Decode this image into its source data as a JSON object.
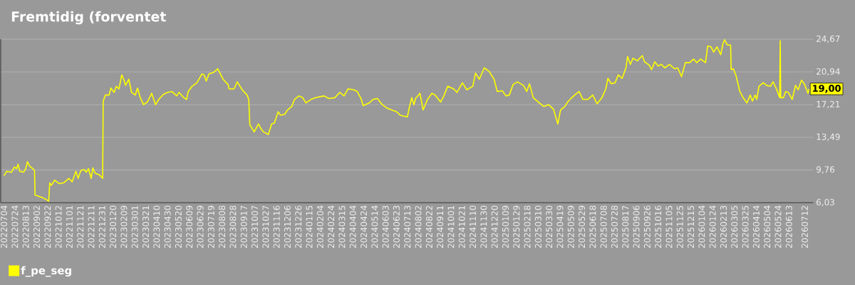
{
  "chart_data": {
    "type": "line",
    "title": "Fremtidig (forventet",
    "x": [
      "2022-07-04",
      "2022-07-09",
      "2022-07-18",
      "2022-07-23",
      "2022-07-27",
      "2022-07-30",
      "2022-08-02",
      "2022-08-09",
      "2022-08-13",
      "2022-08-16",
      "2022-08-20",
      "2022-08-26",
      "2022-08-29",
      "2022-08-30",
      "2022-09-04",
      "2022-09-13",
      "2022-09-19",
      "2022-09-24",
      "2022-09-26",
      "2022-09-29",
      "2022-10-05",
      "2022-10-13",
      "2022-10-22",
      "2022-10-31",
      "2022-11-06",
      "2022-11-13",
      "2022-11-17",
      "2022-11-22",
      "2022-11-28",
      "2022-12-02",
      "2022-12-06",
      "2022-12-11",
      "2022-12-14",
      "2022-12-18",
      "2022-12-26",
      "2023-01-01",
      "2023-01-02",
      "2023-01-06",
      "2023-01-13",
      "2023-01-16",
      "2023-01-22",
      "2023-01-26",
      "2023-01-31",
      "2023-02-05",
      "2023-02-08",
      "2023-02-12",
      "2023-02-18",
      "2023-02-23",
      "2023-03-02",
      "2023-03-06",
      "2023-03-11",
      "2023-03-17",
      "2023-03-24",
      "2023-03-28",
      "2023-04-01",
      "2023-04-08",
      "2023-04-14",
      "2023-04-23",
      "2023-04-30",
      "2023-05-08",
      "2023-05-17",
      "2023-05-21",
      "2023-05-30",
      "2023-06-04",
      "2023-06-07",
      "2023-06-14",
      "2023-06-23",
      "2023-07-02",
      "2023-07-06",
      "2023-07-10",
      "2023-07-15",
      "2023-07-24",
      "2023-07-31",
      "2023-08-05",
      "2023-08-10",
      "2023-08-19",
      "2023-08-21",
      "2023-08-30",
      "2023-09-05",
      "2023-09-09",
      "2023-09-14",
      "2023-09-23",
      "2023-09-26",
      "2023-09-28",
      "2023-10-01",
      "2023-10-06",
      "2023-10-14",
      "2023-10-18",
      "2023-10-23",
      "2023-11-01",
      "2023-11-07",
      "2023-11-12",
      "2023-11-19",
      "2023-11-23",
      "2023-12-01",
      "2023-12-06",
      "2023-12-14",
      "2023-12-19",
      "2023-12-27",
      "2024-01-03",
      "2024-01-09",
      "2024-01-18",
      "2024-01-27",
      "2024-02-11",
      "2024-02-20",
      "2024-03-02",
      "2024-03-11",
      "2024-03-19",
      "2024-03-26",
      "2024-04-06",
      "2024-04-12",
      "2024-04-19",
      "2024-04-23",
      "2024-05-04",
      "2024-05-11",
      "2024-05-19",
      "2024-05-28",
      "2024-06-06",
      "2024-06-14",
      "2024-06-23",
      "2024-06-30",
      "2024-07-13",
      "2024-07-17",
      "2024-07-21",
      "2024-07-25",
      "2024-07-28",
      "2024-08-05",
      "2024-08-11",
      "2024-08-19",
      "2024-08-27",
      "2024-09-02",
      "2024-09-12",
      "2024-09-18",
      "2024-09-25",
      "2024-10-06",
      "2024-10-12",
      "2024-10-22",
      "2024-10-30",
      "2024-11-10",
      "2024-11-15",
      "2024-11-22",
      "2024-12-01",
      "2024-12-10",
      "2024-12-19",
      "2024-12-25",
      "2025-01-03",
      "2025-01-10",
      "2025-01-16",
      "2025-01-23",
      "2025-01-31",
      "2025-02-11",
      "2025-02-17",
      "2025-02-22",
      "2025-03-01",
      "2025-03-12",
      "2025-03-20",
      "2025-03-29",
      "2025-04-07",
      "2025-04-15",
      "2025-04-20",
      "2025-04-28",
      "2025-05-03",
      "2025-05-09",
      "2025-05-16",
      "2025-05-24",
      "2025-05-31",
      "2025-06-09",
      "2025-06-18",
      "2025-06-26",
      "2025-07-05",
      "2025-07-12",
      "2025-07-16",
      "2025-07-22",
      "2025-07-29",
      "2025-08-04",
      "2025-08-11",
      "2025-08-18",
      "2025-08-21",
      "2025-08-26",
      "2025-08-31",
      "2025-09-08",
      "2025-09-17",
      "2025-09-21",
      "2025-09-30",
      "2025-10-04",
      "2025-10-10",
      "2025-10-16",
      "2025-10-22",
      "2025-10-28",
      "2025-11-06",
      "2025-11-15",
      "2025-11-21",
      "2025-11-28",
      "2025-12-05",
      "2025-12-13",
      "2025-12-20",
      "2025-12-26",
      "2026-01-02",
      "2026-01-11",
      "2026-01-15",
      "2026-01-21",
      "2026-01-26",
      "2026-02-01",
      "2026-02-08",
      "2026-02-12",
      "2026-02-15",
      "2026-02-20",
      "2026-02-26",
      "2026-02-27",
      "2026-03-03",
      "2026-03-08",
      "2026-03-15",
      "2026-03-21",
      "2026-03-28",
      "2026-04-03",
      "2026-04-07",
      "2026-04-12",
      "2026-04-15",
      "2026-04-19",
      "2026-04-27",
      "2026-05-03",
      "2026-05-10",
      "2026-05-15",
      "2026-05-21",
      "2026-05-27",
      "2026-05-28",
      "2026-05-29",
      "2026-06-03",
      "2026-06-07",
      "2026-06-12",
      "2026-06-19",
      "2026-06-25",
      "2026-06-30",
      "2026-07-06",
      "2026-07-11",
      "2026-07-18",
      "2026-07-20"
    ],
    "series": [
      {
        "name": "f_pe_seg",
        "color": "#ffff00",
        "values": [
          9.1,
          9.6,
          9.5,
          10.1,
          9.9,
          10.4,
          9.6,
          9.5,
          9.9,
          10.7,
          10.2,
          9.9,
          9.7,
          6.9,
          6.8,
          6.6,
          6.4,
          6.2,
          8.3,
          8.0,
          8.6,
          8.2,
          8.3,
          8.8,
          8.4,
          9.6,
          8.8,
          9.7,
          9.8,
          9.5,
          9.9,
          8.8,
          10.0,
          9.4,
          9.2,
          8.8,
          17.6,
          18.3,
          18.3,
          19.1,
          18.6,
          19.3,
          19.0,
          20.6,
          20.2,
          19.4,
          20.1,
          18.6,
          18.3,
          19.1,
          18.0,
          17.2,
          17.5,
          18.0,
          18.5,
          17.2,
          17.8,
          18.4,
          18.6,
          18.7,
          18.2,
          18.6,
          18.0,
          17.8,
          18.7,
          19.3,
          19.7,
          20.7,
          20.6,
          19.9,
          20.7,
          20.9,
          21.3,
          20.7,
          20.1,
          19.5,
          19.0,
          19.0,
          19.8,
          19.4,
          18.9,
          18.3,
          17.8,
          14.9,
          14.6,
          14.1,
          15.0,
          14.5,
          14.1,
          13.8,
          15.0,
          15.1,
          16.4,
          16.0,
          16.1,
          16.6,
          17.0,
          17.8,
          18.2,
          18.0,
          17.4,
          17.8,
          18.0,
          18.2,
          17.9,
          18.0,
          18.6,
          18.2,
          19.0,
          18.9,
          18.7,
          17.9,
          17.1,
          17.4,
          17.8,
          17.9,
          17.2,
          16.8,
          16.6,
          16.4,
          16.0,
          15.8,
          17.0,
          18.0,
          17.2,
          17.9,
          18.5,
          16.6,
          17.8,
          18.5,
          18.3,
          17.5,
          18.2,
          19.3,
          19.0,
          18.6,
          19.7,
          18.9,
          19.3,
          20.8,
          20.1,
          21.4,
          21.0,
          20.1,
          18.7,
          18.8,
          18.2,
          18.3,
          19.5,
          19.8,
          19.4,
          18.7,
          19.6,
          18.0,
          17.4,
          17.0,
          17.2,
          16.7,
          15.0,
          16.6,
          17.0,
          17.5,
          17.9,
          18.3,
          18.7,
          17.8,
          17.8,
          18.3,
          17.3,
          18.0,
          19.0,
          20.2,
          19.6,
          19.7,
          20.6,
          20.2,
          21.4,
          22.7,
          21.8,
          22.5,
          22.2,
          22.8,
          22.1,
          21.7,
          21.2,
          22.1,
          21.6,
          21.8,
          21.4,
          21.8,
          21.3,
          21.4,
          20.4,
          22.0,
          22.0,
          22.4,
          22.0,
          22.4,
          22.0,
          23.9,
          23.8,
          23.2,
          23.8,
          22.9,
          24.2,
          24.6,
          24.0,
          24.0,
          21.2,
          21.3,
          20.5,
          18.7,
          18.0,
          17.4,
          18.3,
          17.6,
          18.3,
          17.8,
          19.3,
          19.7,
          19.4,
          19.3,
          19.8,
          19.0,
          18.0,
          24.5,
          18.0,
          18.0,
          18.7,
          18.6,
          17.8,
          19.4,
          18.9,
          20.0,
          19.6,
          18.5,
          19.0
        ]
      }
    ],
    "xlim": [
      "2022-06-28",
      "2026-07-28"
    ],
    "xticks": [
      {
        "value": "2022-07-04",
        "label": "20220704"
      },
      {
        "value": "2022-07-24",
        "label": "20220724"
      },
      {
        "value": "2022-08-13",
        "label": "20220813"
      },
      {
        "value": "2022-09-02",
        "label": "20220902"
      },
      {
        "value": "2022-09-22",
        "label": "20220922"
      },
      {
        "value": "2022-10-12",
        "label": "20221012"
      },
      {
        "value": "2022-11-01",
        "label": "20221101"
      },
      {
        "value": "2022-11-21",
        "label": "20221121"
      },
      {
        "value": "2022-12-11",
        "label": "20221211"
      },
      {
        "value": "2022-12-31",
        "label": "20221231"
      },
      {
        "value": "2023-01-20",
        "label": "20230120"
      },
      {
        "value": "2023-02-09",
        "label": "20230209"
      },
      {
        "value": "2023-03-01",
        "label": "20230301"
      },
      {
        "value": "2023-03-21",
        "label": "20230321"
      },
      {
        "value": "2023-04-10",
        "label": "20230410"
      },
      {
        "value": "2023-04-30",
        "label": "20230430"
      },
      {
        "value": "2023-05-20",
        "label": "20230520"
      },
      {
        "value": "2023-06-09",
        "label": "20230609"
      },
      {
        "value": "2023-06-29",
        "label": "20230629"
      },
      {
        "value": "2023-07-19",
        "label": "20230719"
      },
      {
        "value": "2023-08-08",
        "label": "20230808"
      },
      {
        "value": "2023-08-28",
        "label": "20230828"
      },
      {
        "value": "2023-09-17",
        "label": "20230917"
      },
      {
        "value": "2023-10-07",
        "label": "20231007"
      },
      {
        "value": "2023-10-27",
        "label": "20231027"
      },
      {
        "value": "2023-11-16",
        "label": "20231116"
      },
      {
        "value": "2023-12-06",
        "label": "20231206"
      },
      {
        "value": "2023-12-26",
        "label": "20231226"
      },
      {
        "value": "2024-01-15",
        "label": "20240115"
      },
      {
        "value": "2024-02-04",
        "label": "20240204"
      },
      {
        "value": "2024-02-24",
        "label": "20240224"
      },
      {
        "value": "2024-03-15",
        "label": "20240315"
      },
      {
        "value": "2024-04-04",
        "label": "20240404"
      },
      {
        "value": "2024-04-24",
        "label": "20240424"
      },
      {
        "value": "2024-05-14",
        "label": "20240514"
      },
      {
        "value": "2024-06-03",
        "label": "20240603"
      },
      {
        "value": "2024-06-23",
        "label": "20240623"
      },
      {
        "value": "2024-07-13",
        "label": "20240713"
      },
      {
        "value": "2024-08-02",
        "label": "20240802"
      },
      {
        "value": "2024-08-22",
        "label": "20240822"
      },
      {
        "value": "2024-09-11",
        "label": "20240911"
      },
      {
        "value": "2024-10-01",
        "label": "20241001"
      },
      {
        "value": "2024-10-21",
        "label": "20241021"
      },
      {
        "value": "2024-11-10",
        "label": "20241110"
      },
      {
        "value": "2024-11-30",
        "label": "20241130"
      },
      {
        "value": "2024-12-20",
        "label": "20241220"
      },
      {
        "value": "2025-01-09",
        "label": "20250109"
      },
      {
        "value": "2025-01-29",
        "label": "20250129"
      },
      {
        "value": "2025-02-18",
        "label": "20250218"
      },
      {
        "value": "2025-03-10",
        "label": "20250310"
      },
      {
        "value": "2025-03-30",
        "label": "20250330"
      },
      {
        "value": "2025-04-19",
        "label": "20250419"
      },
      {
        "value": "2025-05-09",
        "label": "20250509"
      },
      {
        "value": "2025-05-29",
        "label": "20250529"
      },
      {
        "value": "2025-06-18",
        "label": "20250618"
      },
      {
        "value": "2025-07-08",
        "label": "20250708"
      },
      {
        "value": "2025-07-28",
        "label": "20250728"
      },
      {
        "value": "2025-08-17",
        "label": "20250817"
      },
      {
        "value": "2025-09-06",
        "label": "20250906"
      },
      {
        "value": "2025-09-26",
        "label": "20250926"
      },
      {
        "value": "2025-10-16",
        "label": "20251016"
      },
      {
        "value": "2025-11-05",
        "label": "20251105"
      },
      {
        "value": "2025-11-25",
        "label": "20251125"
      },
      {
        "value": "2025-12-15",
        "label": "20251215"
      },
      {
        "value": "2026-01-04",
        "label": "20260104"
      },
      {
        "value": "2026-01-24",
        "label": "20260124"
      },
      {
        "value": "2026-02-13",
        "label": "20260213"
      },
      {
        "value": "2026-03-05",
        "label": "20260305"
      },
      {
        "value": "2026-03-25",
        "label": "20260325"
      },
      {
        "value": "2026-04-14",
        "label": "20260414"
      },
      {
        "value": "2026-05-04",
        "label": "20260504"
      },
      {
        "value": "2026-05-24",
        "label": "20260524"
      },
      {
        "value": "2026-06-13",
        "label": "20260613"
      },
      {
        "value": "2026-07-12",
        "label": "20260712"
      }
    ],
    "ylim": [
      6.03,
      24.67
    ],
    "yticks": [
      {
        "value": 6.03,
        "label": "6,03"
      },
      {
        "value": 9.76,
        "label": "9,76"
      },
      {
        "value": 13.49,
        "label": "13,49"
      },
      {
        "value": 17.21,
        "label": "17,21"
      },
      {
        "value": 20.94,
        "label": "20,94"
      },
      {
        "value": 24.67,
        "label": "24,67"
      }
    ],
    "grid": "y",
    "legend": "bottom left",
    "marker": "none",
    "line_style": "solid",
    "annotations": [
      {
        "text": "19,00",
        "x": "2026-07-20",
        "y": 19.0
      }
    ]
  }
}
